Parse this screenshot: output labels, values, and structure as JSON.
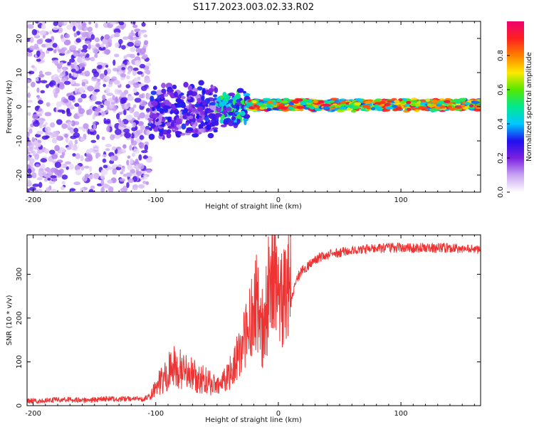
{
  "title": "S117.2023.003.02.33.R02",
  "chart_data": [
    {
      "type": "heatmap",
      "xlabel": "Height of straight line (km)",
      "ylabel": "Frequency (Hz)",
      "xlim": [
        -205,
        165
      ],
      "ylim": [
        -25,
        25
      ],
      "xticks": [
        -200,
        -100,
        0,
        100
      ],
      "yticks": [
        -20,
        -10,
        0,
        10,
        20
      ],
      "colorbar": {
        "label": "Normalized spectral amplitude",
        "range": [
          0,
          1
        ],
        "ticks": [
          0.0,
          0.2,
          0.4,
          0.6,
          0.8
        ],
        "colors": [
          "#ffffff",
          "#c9a4f2",
          "#7a20e0",
          "#2010ee",
          "#00c8ff",
          "#00e890",
          "#55e800",
          "#ffe800",
          "#ff8000",
          "#ff2020",
          "#ee0070"
        ]
      },
      "regions": [
        {
          "x_range": [
            -205,
            -105
          ],
          "freq_range": [
            -25,
            25
          ],
          "amplitude": 0.1
        },
        {
          "x_range": [
            -105,
            -50
          ],
          "freq_range": [
            -8,
            6
          ],
          "amplitude": 0.25
        },
        {
          "x_range": [
            -50,
            -25
          ],
          "freq_range": [
            -5,
            4
          ],
          "amplitude": 0.45
        },
        {
          "x_range": [
            -25,
            165
          ],
          "freq_range": [
            -1,
            2
          ],
          "amplitude": 0.75
        }
      ]
    },
    {
      "type": "line",
      "xlabel": "Height of straight line (km)",
      "ylabel": "SNR (10 * v/v)",
      "xlim": [
        -205,
        165
      ],
      "ylim": [
        0,
        390
      ],
      "xticks": [
        -200,
        -100,
        0,
        100
      ],
      "yticks": [
        0,
        100,
        200,
        300
      ],
      "color": "#ee3333",
      "series": [
        {
          "x": [
            -205,
            -190,
            -175,
            -160,
            -150,
            -140,
            -130,
            -120,
            -110,
            -105,
            -100,
            -95,
            -90,
            -85,
            -80,
            -75,
            -70,
            -65,
            -60,
            -55,
            -50,
            -45,
            -40,
            -35,
            -30,
            -25,
            -22,
            -18,
            -15,
            -12,
            -10,
            -8,
            -5,
            -3,
            0,
            5,
            10,
            15,
            20,
            25,
            30,
            40,
            50,
            60,
            70,
            80,
            90,
            100,
            110,
            120,
            130,
            140,
            150,
            160,
            165
          ],
          "y": [
            10,
            12,
            14,
            12,
            13,
            16,
            15,
            16,
            15,
            22,
            35,
            45,
            60,
            70,
            65,
            60,
            55,
            50,
            45,
            40,
            35,
            40,
            55,
            75,
            100,
            140,
            170,
            200,
            150,
            130,
            170,
            200,
            240,
            270,
            200,
            180,
            230,
            290,
            310,
            320,
            335,
            345,
            350,
            355,
            357,
            358,
            360,
            362,
            360,
            361,
            360,
            361,
            358,
            360,
            355
          ]
        }
      ]
    }
  ]
}
